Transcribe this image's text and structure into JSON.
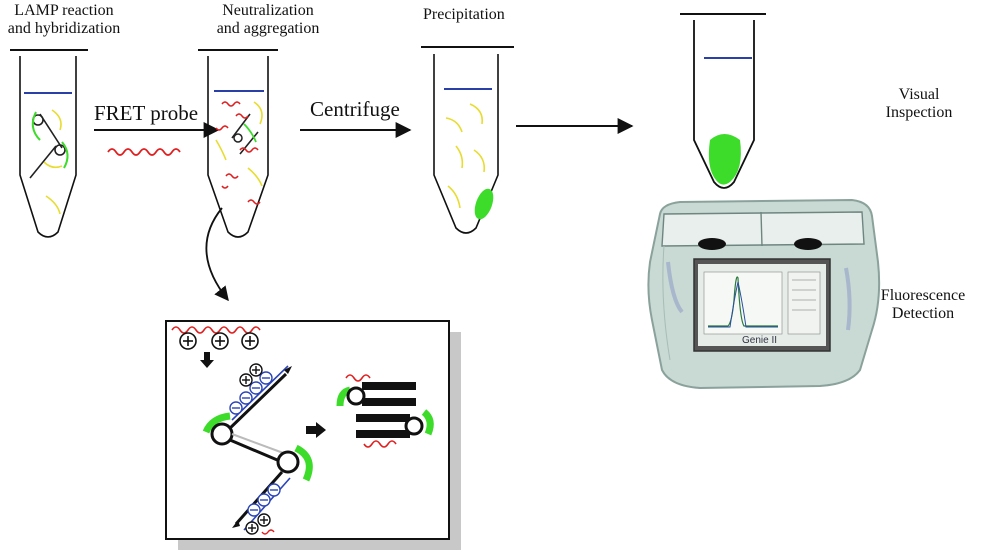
{
  "steps": {
    "lamp_line1": "LAMP reaction",
    "lamp_line2": "and hybridization",
    "neutral_line1": "Neutralization",
    "neutral_line2": "and aggregation",
    "precipitation": "Precipitation"
  },
  "arrows": {
    "fret_probe": "FRET probe",
    "centrifuge": "Centrifuge"
  },
  "outputs": {
    "visual_line1": "Visual",
    "visual_line2": "Inspection",
    "fluor_line1": "Fluorescence",
    "fluor_line2": "Detection"
  },
  "device": {
    "brand": "Genie II"
  },
  "colors": {
    "meniscus": "#2b3fa8",
    "fret_probe": "#e02020",
    "dna_primer": "#f0e040",
    "fluorescence": "#3ddc2a",
    "charge_negative": "#2b45b8",
    "device_body": "#c9d9d4"
  },
  "icons": {
    "positive_charge": "plus-circle-icon",
    "negative_charge": "minus-circle-icon"
  }
}
